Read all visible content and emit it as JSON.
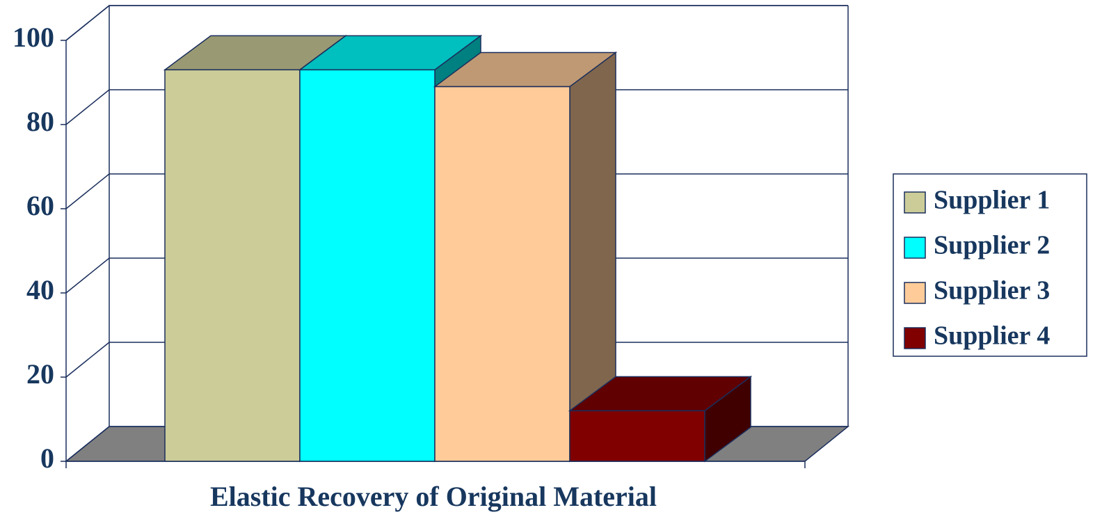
{
  "chart_data": {
    "type": "bar3d",
    "categories": [
      "Elastic Recovery of Original Material"
    ],
    "series": [
      {
        "name": "Supplier 1",
        "color": "#cccc99",
        "values": [
          93
        ]
      },
      {
        "name": "Supplier 2",
        "color": "#00ffff",
        "values": [
          93
        ]
      },
      {
        "name": "Supplier 3",
        "color": "#ffcc99",
        "values": [
          89
        ]
      },
      {
        "name": "Supplier 4",
        "color": "#800000",
        "values": [
          12
        ]
      }
    ],
    "ylim": [
      0,
      100
    ],
    "yticks": [
      0,
      20,
      40,
      60,
      80,
      100
    ],
    "grid": true,
    "legend": "right"
  }
}
